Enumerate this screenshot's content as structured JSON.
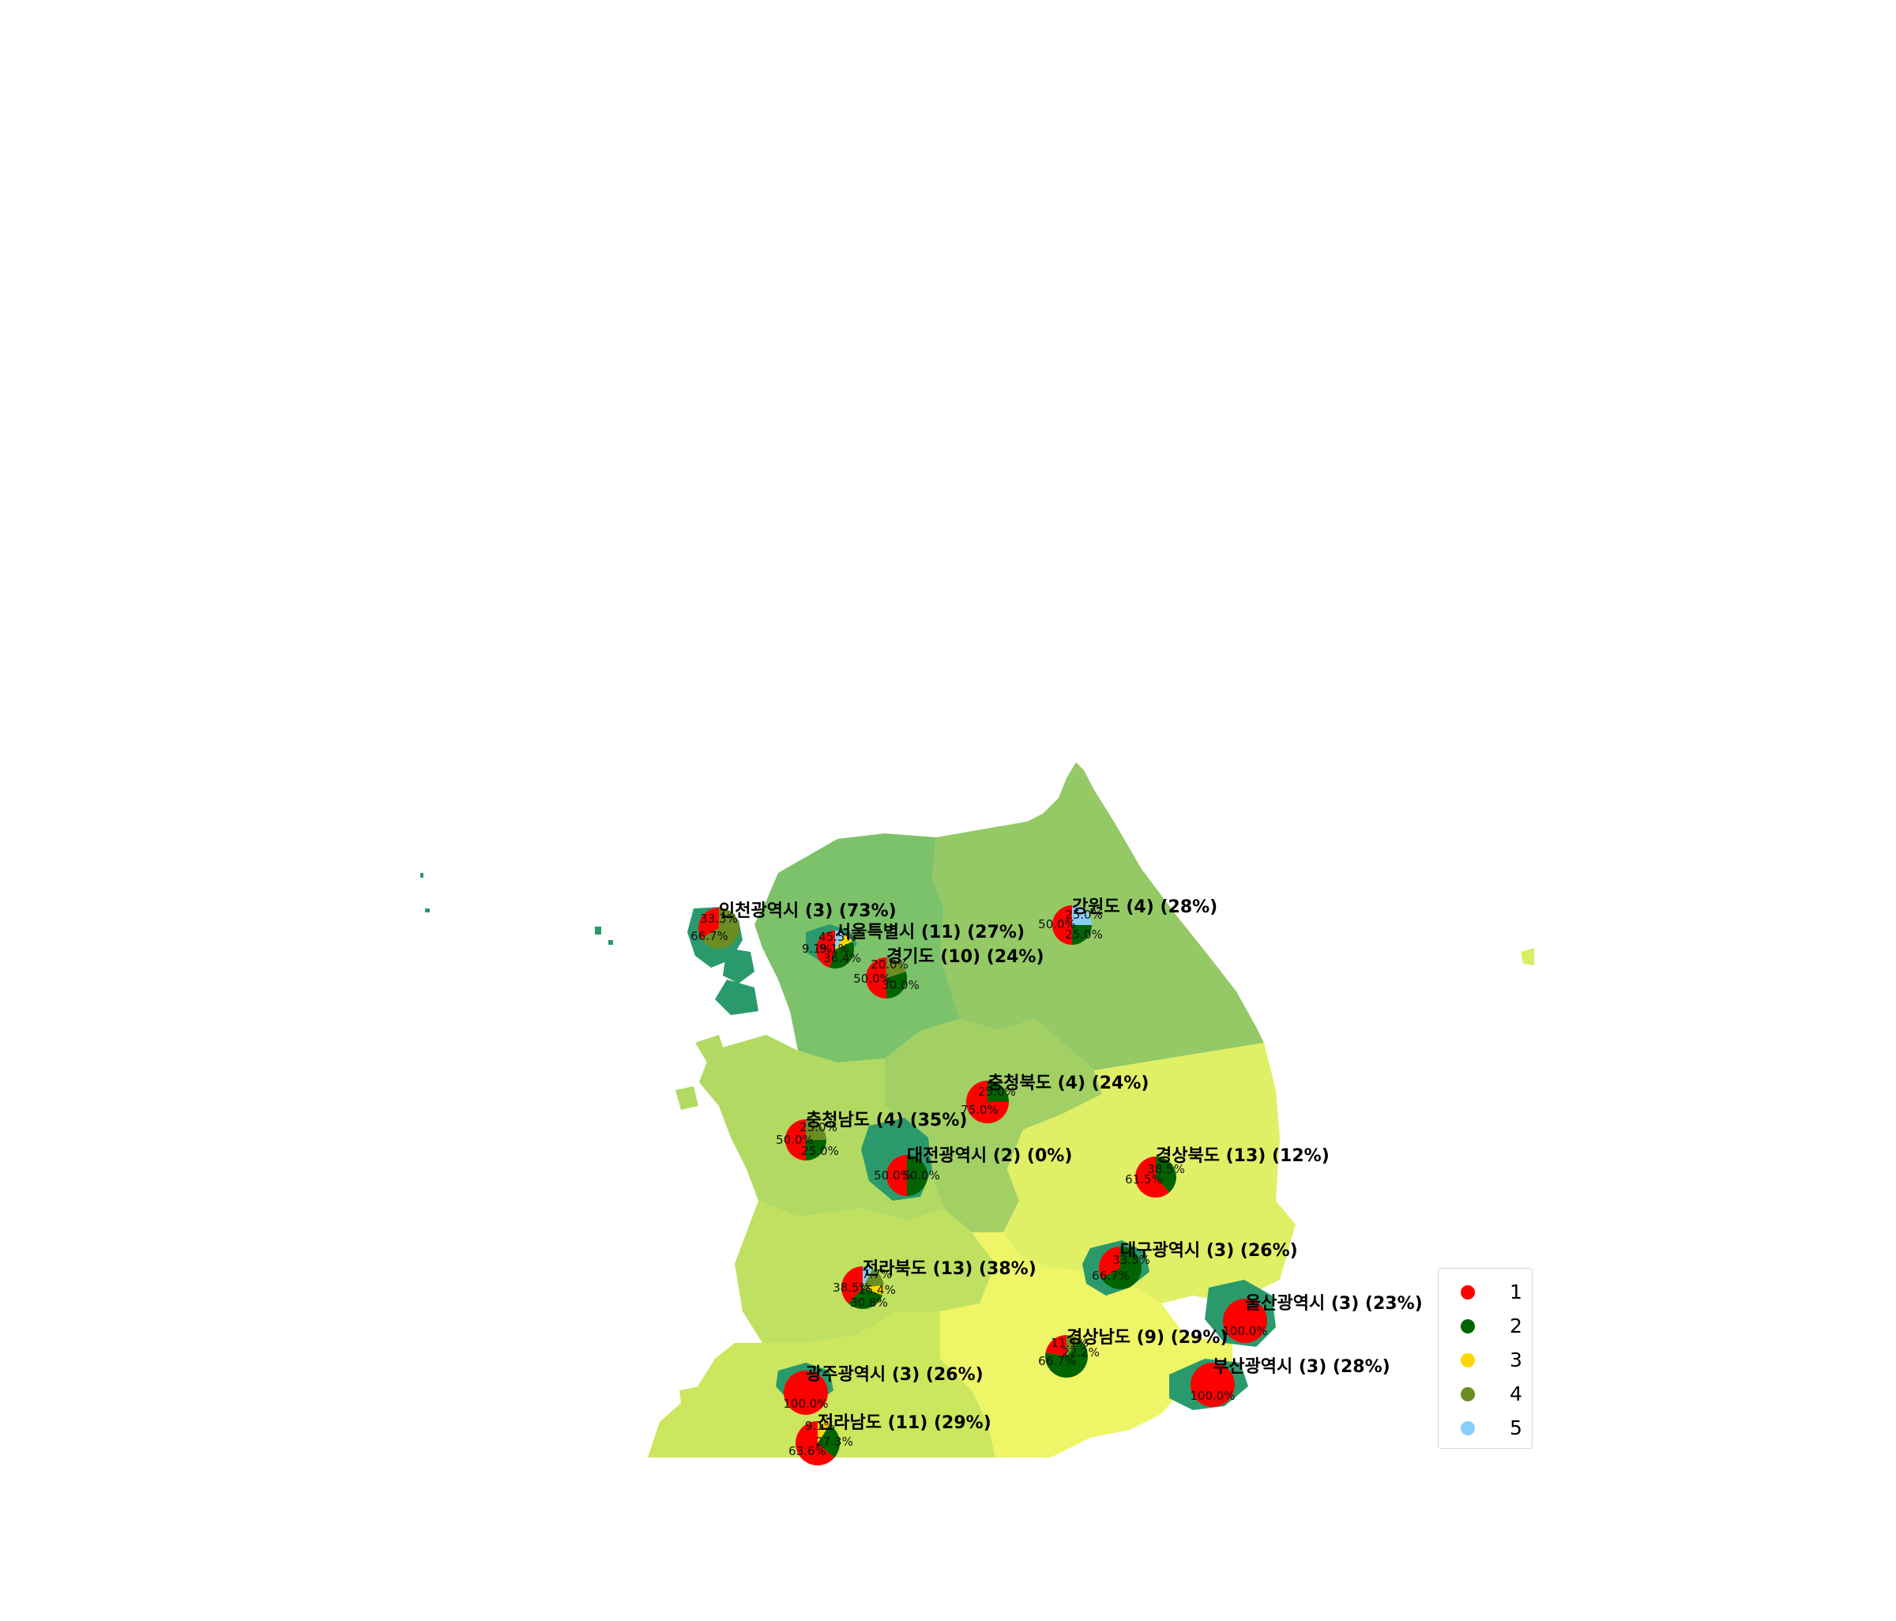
{
  "map": {
    "colors": {
      "metro_city": "#2a9a6c",
      "seoul_incheon": "#2a9a6c",
      "gyeonggi": "#7cc26a",
      "gangwon": "#94c965",
      "chungbuk": "#a3d064",
      "chungnam": "#b2da62",
      "jeonbuk": "#bfe060",
      "jeonnam": "#cce65e",
      "gyeongbuk": "#dff066",
      "gyeongnam": "#eef566",
      "jeju_island": "#d8ee64"
    },
    "category_colors": [
      "#ff0000",
      "#006400",
      "#ffd700",
      "#6b8e23",
      "#87cefa"
    ],
    "legend": {
      "items": [
        {
          "label": "1",
          "color": "#ff0000"
        },
        {
          "label": "2",
          "color": "#006400"
        },
        {
          "label": "3",
          "color": "#ffd700"
        },
        {
          "label": "4",
          "color": "#6b8e23"
        },
        {
          "label": "5",
          "color": "#87cefa"
        }
      ]
    },
    "regions": [
      {
        "id": "incheon",
        "label": "인천광역시 (3) (73%)",
        "pie": [
          33.3,
          0,
          0,
          66.7,
          0
        ],
        "pct_labels": [
          "33.3%",
          "66.7%"
        ]
      },
      {
        "id": "seoul",
        "label": "서울특별시 (11) (27%)",
        "pie": [
          45.5,
          36.4,
          9.1,
          0,
          9.1
        ],
        "pct_labels": [
          "45.5%",
          "9.1%",
          "9.1%",
          "36.4%"
        ]
      },
      {
        "id": "gyeonggi",
        "label": "경기도 (10) (24%)",
        "pie": [
          50.0,
          30.0,
          0,
          20.0,
          0
        ],
        "pct_labels": [
          "20.0%",
          "50.0%",
          "30.0%"
        ]
      },
      {
        "id": "gangwon",
        "label": "강원도 (4) (28%)",
        "pie": [
          50.0,
          25.0,
          0,
          0,
          25.0
        ],
        "pct_labels": [
          "25.0%",
          "50.0%",
          "25.0%"
        ]
      },
      {
        "id": "chungbuk",
        "label": "충청북도 (4) (24%)",
        "pie": [
          75.0,
          25.0,
          0,
          0,
          0
        ],
        "pct_labels": [
          "25.0%",
          "75.0%"
        ]
      },
      {
        "id": "chungnam",
        "label": "충청남도 (4) (35%)",
        "pie": [
          50.0,
          25.0,
          0,
          25.0,
          0
        ],
        "pct_labels": [
          "25.0%",
          "50.0%",
          "25.0%"
        ]
      },
      {
        "id": "daejeon",
        "label": "대전광역시 (2) (0%)",
        "pie": [
          50.0,
          50.0,
          0,
          0,
          0
        ],
        "pct_labels": [
          "50.0%",
          "50.0%"
        ]
      },
      {
        "id": "gyeongbuk",
        "label": "경상북도 (13) (12%)",
        "pie": [
          61.5,
          38.5,
          0,
          0,
          0
        ],
        "pct_labels": [
          "38.5%",
          "61.5%"
        ]
      },
      {
        "id": "daegu",
        "label": "대구광역시 (3) (26%)",
        "pie": [
          33.3,
          66.7,
          0,
          0,
          0
        ],
        "pct_labels": [
          "33.3%",
          "66.7%"
        ]
      },
      {
        "id": "jeonbuk",
        "label": "전라북도 (13) (38%)",
        "pie": [
          38.5,
          30.8,
          7.7,
          15.4,
          7.7
        ],
        "pct_labels": [
          "7.7%",
          "38.5%",
          "15.4%",
          "30.8%"
        ]
      },
      {
        "id": "ulsan",
        "label": "울산광역시 (3) (23%)",
        "pie": [
          100,
          0,
          0,
          0,
          0
        ],
        "pct_labels": [
          "100.0%"
        ]
      },
      {
        "id": "gyeongnam",
        "label": "경상남도 (9) (29%)",
        "pie": [
          22.2,
          66.7,
          0,
          11.1,
          0
        ],
        "pct_labels": [
          "11.1%",
          "22.2%",
          "66.7%"
        ]
      },
      {
        "id": "busan",
        "label": "부산광역시 (3) (28%)",
        "pie": [
          100,
          0,
          0,
          0,
          0
        ],
        "pct_labels": [
          "100.0%"
        ]
      },
      {
        "id": "gwangju",
        "label": "광주광역시 (3) (26%)",
        "pie": [
          100,
          0,
          0,
          0,
          0
        ],
        "pct_labels": [
          "100.0%"
        ]
      },
      {
        "id": "jeonnam",
        "label": "전라남도 (11) (29%)",
        "pie": [
          63.6,
          27.3,
          9.1,
          0,
          0
        ],
        "pct_labels": [
          "9.1%",
          "27.3%",
          "63.6%"
        ]
      }
    ]
  }
}
